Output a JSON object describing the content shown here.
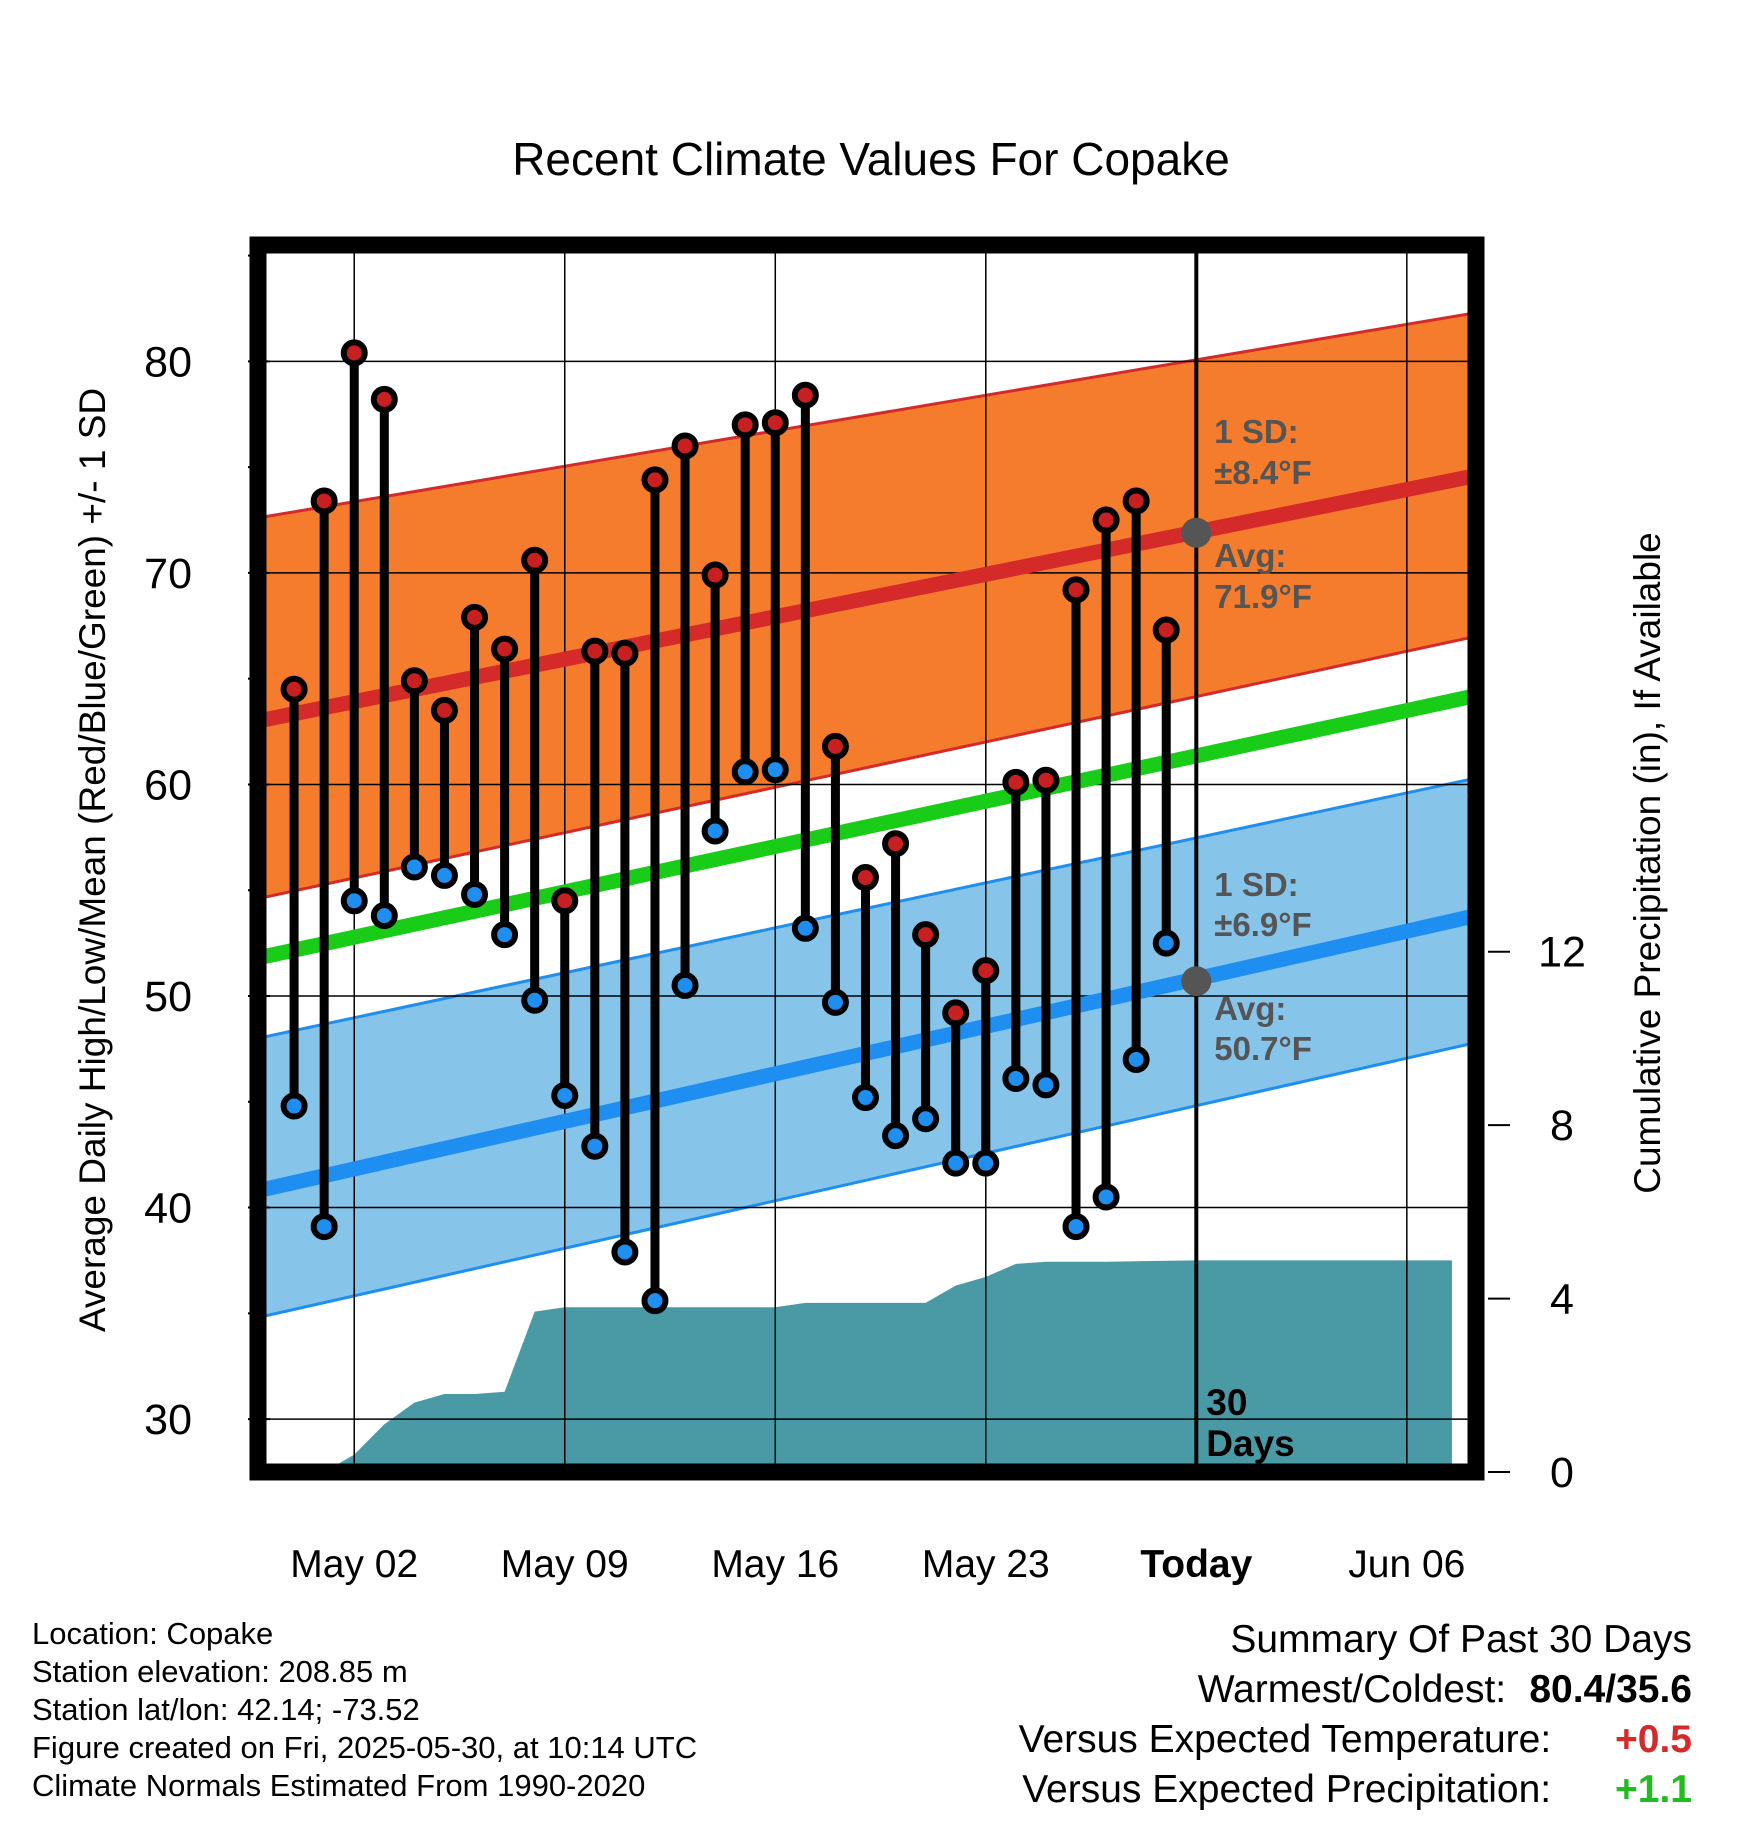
{
  "chart_data": {
    "type": "line",
    "title": "Recent Climate Values For Copake",
    "xlabel": "Day",
    "ylabel": "Average Daily High/Low/Mean (Red/Blue/Green) +/- 1 SD",
    "y2label": "Cumulative Precipitation (in), If Available",
    "ylim": [
      27.5,
      85.5
    ],
    "y2lim": [
      0,
      28.3
    ],
    "yticks": [
      30,
      40,
      50,
      60,
      70,
      80
    ],
    "y2ticks": [
      0,
      4,
      8,
      12
    ],
    "x_tick_labels": [
      {
        "day": 1,
        "label": "May 02"
      },
      {
        "day": 8,
        "label": "May 09"
      },
      {
        "day": 15,
        "label": "May 16"
      },
      {
        "day": 22,
        "label": "May 23"
      },
      {
        "day": 29,
        "label": "Today"
      },
      {
        "day": 36,
        "label": "Jun 06"
      }
    ],
    "xlim": [
      -2.2,
      38.3
    ],
    "grid": true,
    "today_day": 29,
    "today_label": "30 Days",
    "daily_highs": [
      64.5,
      73.4,
      80.4,
      78.2,
      64.9,
      63.5,
      67.9,
      66.4,
      70.6,
      54.5,
      66.3,
      66.2,
      74.4,
      76.0,
      69.9,
      77.0,
      77.1,
      78.4,
      61.8,
      55.6,
      57.2,
      52.9,
      49.2,
      51.2,
      60.1,
      60.2,
      69.2,
      72.5,
      73.4,
      67.3
    ],
    "daily_lows": [
      44.8,
      39.1,
      54.5,
      53.8,
      56.1,
      55.7,
      54.8,
      52.9,
      49.8,
      45.3,
      42.9,
      37.9,
      35.6,
      50.5,
      57.8,
      60.6,
      60.7,
      53.2,
      49.7,
      45.2,
      43.4,
      44.2,
      42.1,
      42.1,
      46.1,
      45.8,
      39.1,
      40.5,
      47.0,
      52.5
    ],
    "normal_high": {
      "start": 63.0,
      "end": 74.6
    },
    "normal_high_sd_band": {
      "lower_start": 54.6,
      "lower_end": 67.0,
      "upper_start": 72.6,
      "upper_end": 82.3
    },
    "normal_mean": {
      "start": 51.8,
      "end": 64.2
    },
    "normal_low": {
      "start": 40.8,
      "end": 53.8
    },
    "normal_low_sd_band": {
      "lower_start": 34.8,
      "lower_end": 47.8,
      "upper_start": 48.0,
      "upper_end": 60.3
    },
    "cumulative_precip": [
      {
        "day": -1,
        "value": 0
      },
      {
        "day": 0,
        "value": 0
      },
      {
        "day": 1,
        "value": 0.4
      },
      {
        "day": 2,
        "value": 1.1
      },
      {
        "day": 3,
        "value": 1.6
      },
      {
        "day": 4,
        "value": 1.8
      },
      {
        "day": 5,
        "value": 1.8
      },
      {
        "day": 6,
        "value": 1.85
      },
      {
        "day": 7,
        "value": 3.7
      },
      {
        "day": 8,
        "value": 3.8
      },
      {
        "day": 9,
        "value": 3.8
      },
      {
        "day": 15,
        "value": 3.8
      },
      {
        "day": 16,
        "value": 3.9
      },
      {
        "day": 20,
        "value": 3.9
      },
      {
        "day": 21,
        "value": 4.3
      },
      {
        "day": 22,
        "value": 4.5
      },
      {
        "day": 23,
        "value": 4.8
      },
      {
        "day": 24,
        "value": 4.85
      },
      {
        "day": 26,
        "value": 4.85
      },
      {
        "day": 29,
        "value": 4.88
      },
      {
        "day": 37.5,
        "value": 4.88
      }
    ],
    "annotations": {
      "high_sd": {
        "label": "1 SD:",
        "value": "±8.4°F"
      },
      "high_avg": {
        "label": "Avg:",
        "value": "71.9°F",
        "temp": 71.9
      },
      "low_sd": {
        "label": "1 SD:",
        "value": "±6.9°F"
      },
      "low_avg": {
        "label": "Avg:",
        "value": "50.7°F",
        "temp": 50.7
      }
    },
    "colors": {
      "high_band": "#f47c2c",
      "high_line": "#d42a2a",
      "mean_line": "#18cc18",
      "low_band": "#86c4ea",
      "low_line": "#1e8ff0",
      "precip": "#4a9aa6",
      "high_marker": "#c82020",
      "low_marker": "#1e8ff0",
      "annotation_text": "#555555"
    }
  },
  "info": {
    "location": "Location: Copake",
    "elevation": "Station elevation: 208.85 m",
    "latlon": "Station lat/lon: 42.14; -73.52",
    "created": "Figure created on Fri, 2025-05-30, at 10:14 UTC",
    "normals": "Climate Normals Estimated From 1990-2020"
  },
  "summary": {
    "title": "Summary Of Past 30 Days",
    "warmest_label": "Warmest/Coldest:",
    "warmest_value": "80.4/35.6",
    "temp_label": "Versus Expected Temperature:",
    "temp_value": "+0.5",
    "precip_label": "Versus Expected Precipitation:",
    "precip_value": "+1.1"
  }
}
